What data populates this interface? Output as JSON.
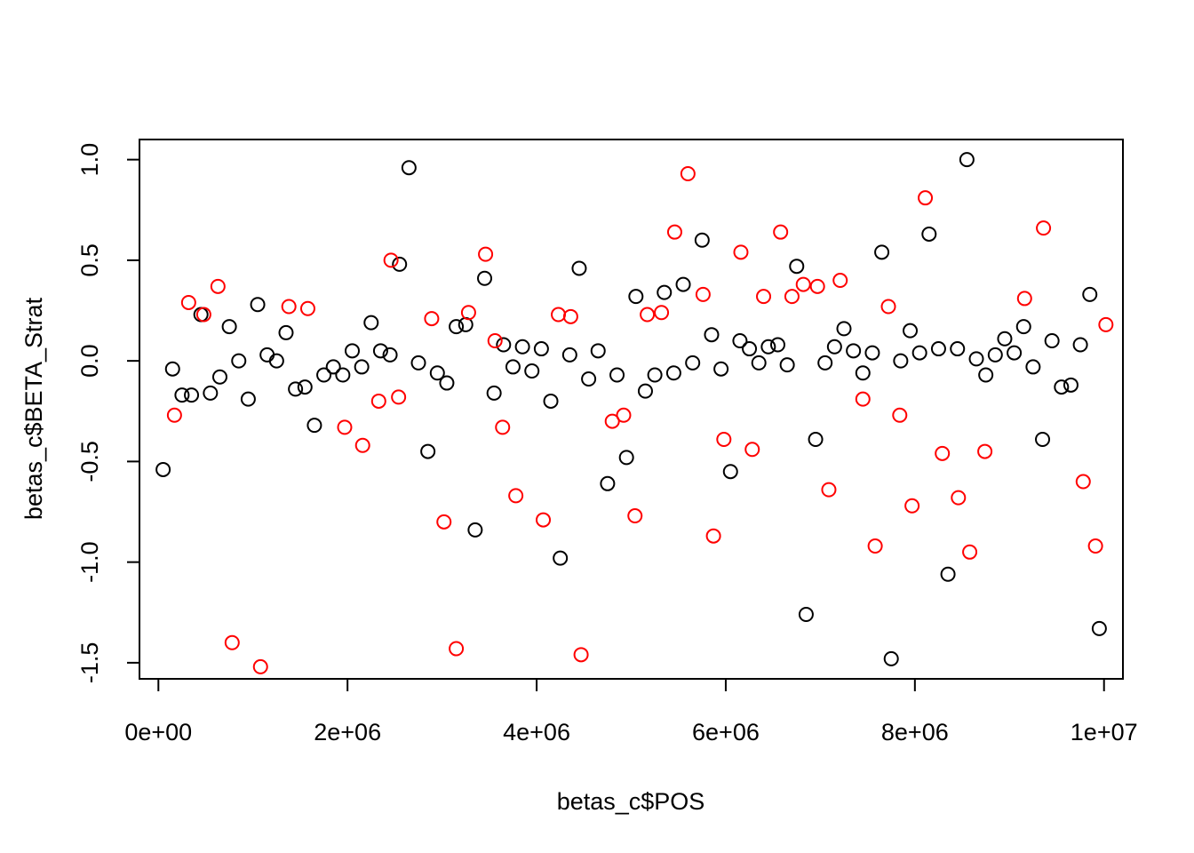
{
  "chart_data": {
    "type": "scatter",
    "title": "",
    "xlabel": "betas_c$POS",
    "ylabel": "betas_c$BETA_Strat",
    "xlim": [
      -200000,
      10200000
    ],
    "ylim": [
      -1.58,
      1.1
    ],
    "x_ticks": [
      0,
      2000000,
      4000000,
      6000000,
      8000000,
      10000000
    ],
    "x_tick_labels": [
      "0e+00",
      "2e+06",
      "4e+06",
      "6e+06",
      "8e+06",
      "1e+07"
    ],
    "y_ticks": [
      -1.5,
      -1.0,
      -0.5,
      0.0,
      0.5,
      1.0
    ],
    "y_tick_labels": [
      "-1.5",
      "-1.0",
      "-0.5",
      "0.0",
      "0.5",
      "1.0"
    ],
    "grid": false,
    "legend": null,
    "series": [
      {
        "color": "#000000",
        "x": [
          50000,
          150000,
          250000,
          350000,
          450000,
          550000,
          650000,
          750000,
          850000,
          950000,
          1050000,
          1150000,
          1250000,
          1350000,
          1450000,
          1550000,
          1650000,
          1750000,
          1850000,
          1950000,
          2050000,
          2150000,
          2250000,
          2350000,
          2450000,
          2550000,
          2650000,
          2750000,
          2850000,
          2950000,
          3050000,
          3150000,
          3250000,
          3350000,
          3450000,
          3550000,
          3650000,
          3750000,
          3850000,
          3950000,
          4050000,
          4150000,
          4250000,
          4350000,
          4450000,
          4550000,
          4650000,
          4750000,
          4850000,
          4950000,
          5050000,
          5150000,
          5250000,
          5350000,
          5450000,
          5550000,
          5650000,
          5750000,
          5850000,
          5950000,
          6050000,
          6150000,
          6250000,
          6350000,
          6450000,
          6550000,
          6650000,
          6750000,
          6850000,
          6950000,
          7050000,
          7150000,
          7250000,
          7350000,
          7450000,
          7550000,
          7650000,
          7750000,
          7850000,
          7950000,
          8050000,
          8150000,
          8250000,
          8350000,
          8450000,
          8550000,
          8650000,
          8750000,
          8850000,
          8950000,
          9050000,
          9150000,
          9250000,
          9350000,
          9450000,
          9550000,
          9650000,
          9750000,
          9850000,
          9950000
        ],
        "y": [
          -0.54,
          -0.04,
          -0.17,
          -0.17,
          0.23,
          -0.16,
          -0.08,
          0.17,
          0.0,
          -0.19,
          0.28,
          0.03,
          0.0,
          0.14,
          -0.14,
          -0.13,
          -0.32,
          -0.07,
          -0.03,
          -0.07,
          0.05,
          -0.03,
          0.19,
          0.05,
          0.03,
          0.48,
          0.96,
          -0.01,
          -0.45,
          -0.06,
          -0.11,
          0.17,
          0.18,
          -0.84,
          0.41,
          -0.16,
          0.08,
          -0.03,
          0.07,
          -0.05,
          0.06,
          -0.2,
          -0.98,
          0.03,
          0.46,
          -0.09,
          0.05,
          -0.61,
          -0.07,
          -0.48,
          0.32,
          -0.15,
          -0.07,
          0.34,
          -0.06,
          0.38,
          -0.01,
          0.6,
          0.13,
          -0.04,
          -0.55,
          0.1,
          0.06,
          -0.01,
          0.07,
          0.08,
          -0.02,
          0.47,
          -1.26,
          -0.39,
          -0.01,
          0.07,
          0.16,
          0.05,
          -0.06,
          0.04,
          0.54,
          -1.48,
          0.0,
          0.15,
          0.04,
          0.63,
          0.06,
          -1.06,
          0.06,
          1.0,
          0.01,
          -0.07,
          0.03,
          0.11,
          0.04,
          0.17,
          -0.03,
          -0.39,
          0.1,
          -0.13,
          -0.12,
          0.08,
          0.33,
          -1.33
        ]
      },
      {
        "color": "#ff0000",
        "x": [
          170000,
          320000,
          480000,
          630000,
          780000,
          1080000,
          1380000,
          1580000,
          1970000,
          2160000,
          2330000,
          2460000,
          2540000,
          2890000,
          3020000,
          3150000,
          3280000,
          3460000,
          3560000,
          3640000,
          3780000,
          4070000,
          4230000,
          4360000,
          4470000,
          4800000,
          4920000,
          5040000,
          5170000,
          5320000,
          5460000,
          5600000,
          5760000,
          5870000,
          5980000,
          6160000,
          6280000,
          6400000,
          6580000,
          6700000,
          6820000,
          6970000,
          7090000,
          7210000,
          7450000,
          7580000,
          7720000,
          7840000,
          7970000,
          8110000,
          8290000,
          8460000,
          8580000,
          8740000,
          9160000,
          9360000,
          9780000,
          9910000,
          10020000
        ],
        "y": [
          -0.27,
          0.29,
          0.23,
          0.37,
          -1.4,
          -1.52,
          0.27,
          0.26,
          -0.33,
          -0.42,
          -0.2,
          0.5,
          -0.18,
          0.21,
          -0.8,
          -1.43,
          0.24,
          0.53,
          0.1,
          -0.33,
          -0.67,
          -0.79,
          0.23,
          0.22,
          -1.46,
          -0.3,
          -0.27,
          -0.77,
          0.23,
          0.24,
          0.64,
          0.93,
          0.33,
          -0.87,
          -0.39,
          0.54,
          -0.44,
          0.32,
          0.64,
          0.32,
          0.38,
          0.37,
          -0.64,
          0.4,
          -0.19,
          -0.92,
          0.27,
          -0.27,
          -0.72,
          0.81,
          -0.46,
          -0.68,
          -0.95,
          -0.45,
          0.31,
          0.66,
          -0.6,
          -0.92,
          0.18
        ]
      }
    ]
  }
}
